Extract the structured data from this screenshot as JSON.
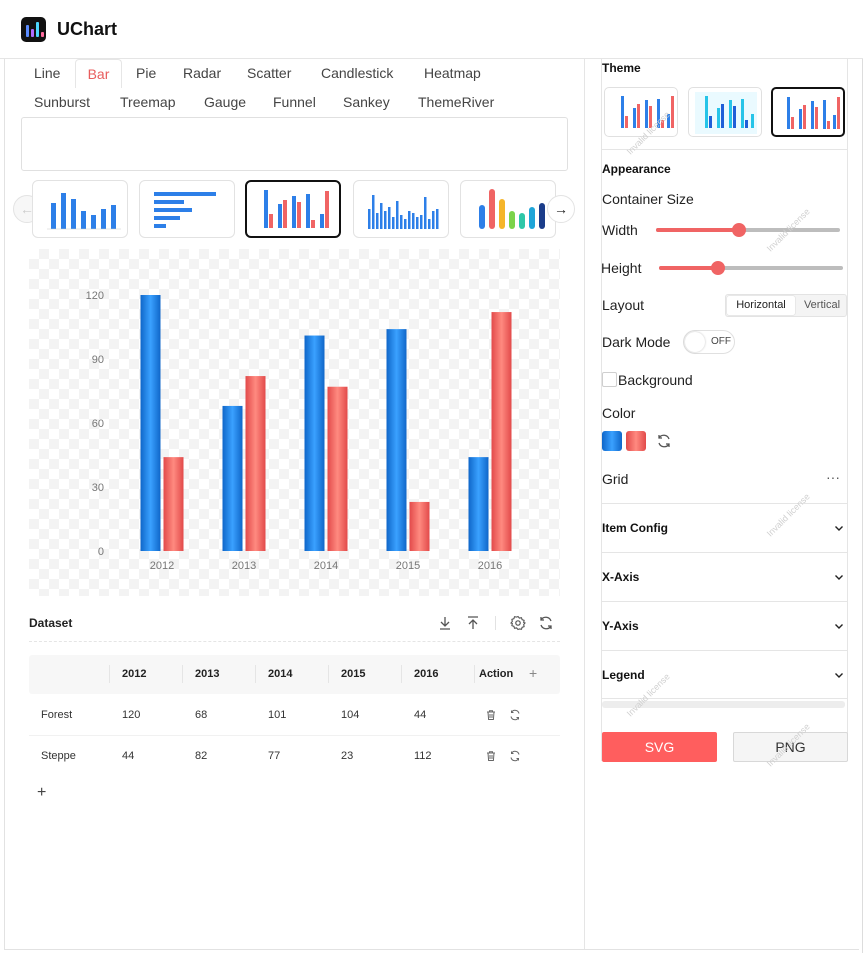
{
  "app": {
    "title": "UChart"
  },
  "tabs": {
    "row1": [
      "Line",
      "Bar",
      "Pie",
      "Radar",
      "Scatter",
      "Candlestick",
      "Heatmap"
    ],
    "row2": [
      "Sunburst",
      "Treemap",
      "Gauge",
      "Funnel",
      "Sankey",
      "ThemeRiver"
    ],
    "active": "Bar"
  },
  "icons": {
    "prev": "arrow-left-icon",
    "next": "arrow-right-icon",
    "download": "download-icon",
    "upload": "upload-icon",
    "settings": "gear-icon",
    "refresh": "refresh-icon",
    "delete": "trash-icon",
    "add": "plus-icon",
    "more": "more-icon",
    "chevron": "chevron-down-icon"
  },
  "colors": {
    "accent": "#ff5e5e",
    "blue": "#1a7fe0",
    "red": "#f06464",
    "text": "#222222"
  },
  "chart_data": {
    "type": "bar",
    "categories": [
      "2012",
      "2013",
      "2014",
      "2015",
      "2016"
    ],
    "series": [
      {
        "values": [
          120,
          68,
          101,
          104,
          44
        ],
        "color": "#1a7fe0"
      },
      {
        "values": [
          44,
          82,
          77,
          23,
          112
        ],
        "color": "#f06464"
      }
    ],
    "yticks": [
      "0",
      "30",
      "60",
      "90",
      "120"
    ],
    "ylim": [
      0,
      120
    ],
    "grid": false
  },
  "dataset": {
    "title": "Dataset",
    "columns": [
      "2012",
      "2013",
      "2014",
      "2015",
      "2016"
    ],
    "action_label": "Action",
    "add_col": "+",
    "add_row": "+",
    "rows": [
      {
        "name": "Forest",
        "values": [
          "120",
          "68",
          "101",
          "104",
          "44"
        ]
      },
      {
        "name": "Steppe",
        "values": [
          "44",
          "82",
          "77",
          "23",
          "112"
        ]
      }
    ]
  },
  "panel": {
    "theme_title": "Theme",
    "appearance_title": "Appearance",
    "container_size": "Container Size",
    "width_label": "Width",
    "height_label": "Height",
    "width_value": 0.45,
    "height_value": 0.32,
    "layout_label": "Layout",
    "layout_options": [
      "Horizontal",
      "Vertical"
    ],
    "layout_selected": "Horizontal",
    "dark_mode_label": "Dark Mode",
    "dark_mode_state": "OFF",
    "background_label": "Background",
    "color_label": "Color",
    "grid_label": "Grid",
    "grid_more": "···",
    "sections": [
      "Item Config",
      "X-Axis",
      "Y-Axis",
      "Legend"
    ],
    "svg_button": "SVG",
    "png_button": "PNG",
    "watermark": "Invalid license"
  }
}
